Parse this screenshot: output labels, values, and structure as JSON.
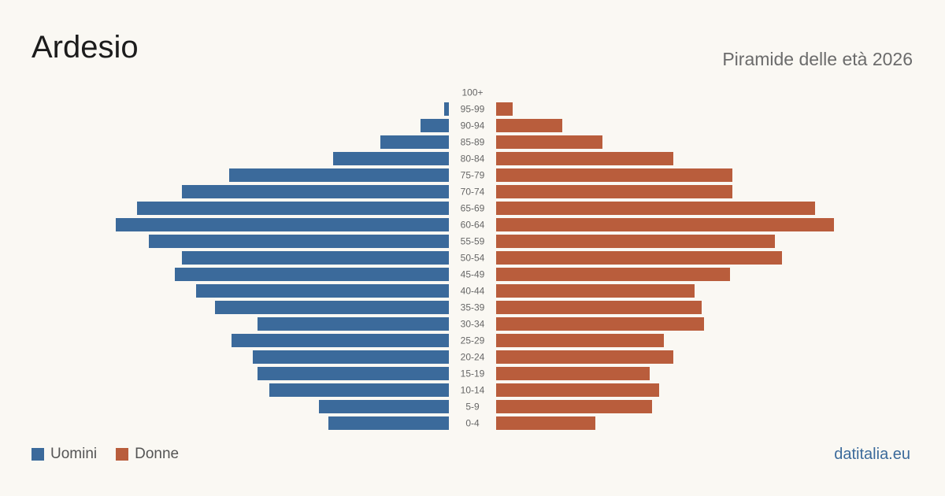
{
  "header": {
    "title": "Ardesio",
    "subtitle": "Piramide delle età 2026"
  },
  "legend": {
    "male_label": "Uomini",
    "female_label": "Donne"
  },
  "footer": {
    "source": "datitalia.eu"
  },
  "colors": {
    "male": "#3b6a9b",
    "female": "#b95d3c",
    "background": "#faf8f3"
  },
  "chart_data": {
    "type": "bar",
    "orientation": "horizontal-population-pyramid",
    "categories": [
      "100+",
      "95-99",
      "90-94",
      "85-89",
      "80-84",
      "75-79",
      "70-74",
      "65-69",
      "60-64",
      "55-59",
      "50-54",
      "45-49",
      "40-44",
      "35-39",
      "30-34",
      "25-29",
      "20-24",
      "15-19",
      "10-14",
      "5-9",
      "0-4"
    ],
    "series": [
      {
        "name": "Uomini",
        "values": [
          0,
          2,
          12,
          29,
          49,
          93,
          113,
          132,
          141,
          127,
          113,
          116,
          107,
          99,
          81,
          92,
          83,
          81,
          76,
          55,
          51
        ]
      },
      {
        "name": "Donne",
        "values": [
          0,
          7,
          28,
          45,
          75,
          100,
          100,
          135,
          143,
          118,
          121,
          99,
          84,
          87,
          88,
          71,
          75,
          65,
          69,
          66,
          42
        ]
      }
    ],
    "grid": false,
    "legend_position": "bottom-left"
  }
}
